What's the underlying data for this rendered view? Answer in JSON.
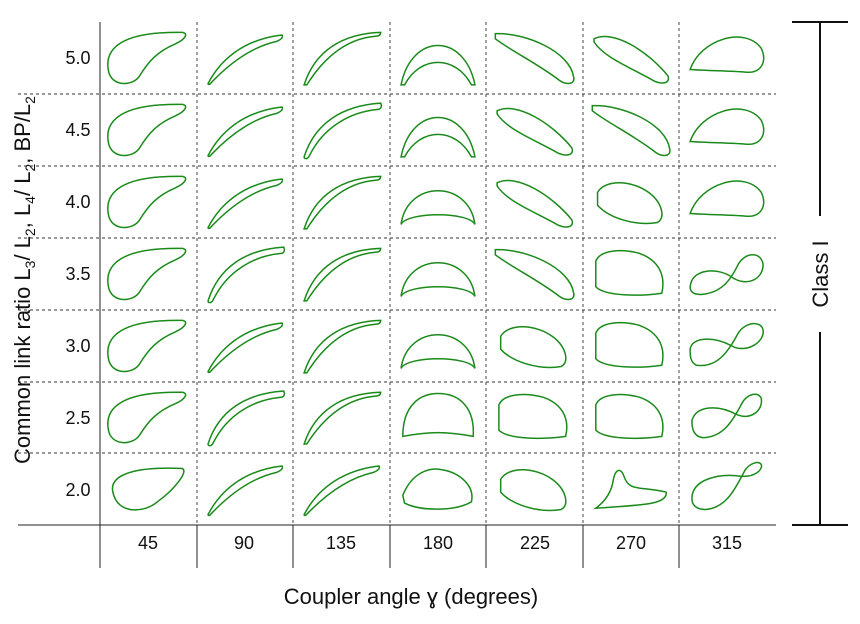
{
  "x_axis": {
    "title": "Coupler angle ɣ (degrees)",
    "ticks": [
      "45",
      "90",
      "135",
      "180",
      "225",
      "270",
      "315"
    ]
  },
  "y_axis": {
    "title_main": "Common link ratio L",
    "title_parts": [
      {
        "t": "3",
        "sub": true
      },
      {
        "t": "/ L",
        "sub": false
      },
      {
        "t": "2",
        "sub": true
      },
      {
        "t": ", L",
        "sub": false
      },
      {
        "t": "4",
        "sub": true
      },
      {
        "t": "/ L",
        "sub": false
      },
      {
        "t": "2",
        "sub": true
      },
      {
        "t": ", BP/L",
        "sub": false
      },
      {
        "t": "2",
        "sub": true
      }
    ],
    "ticks": [
      "5.0",
      "4.5",
      "4.0",
      "3.5",
      "3.0",
      "2.5",
      "2.0"
    ]
  },
  "class_label": "Class I",
  "colors": {
    "curve": "#1a8a1a",
    "grid": "#333333"
  }
}
